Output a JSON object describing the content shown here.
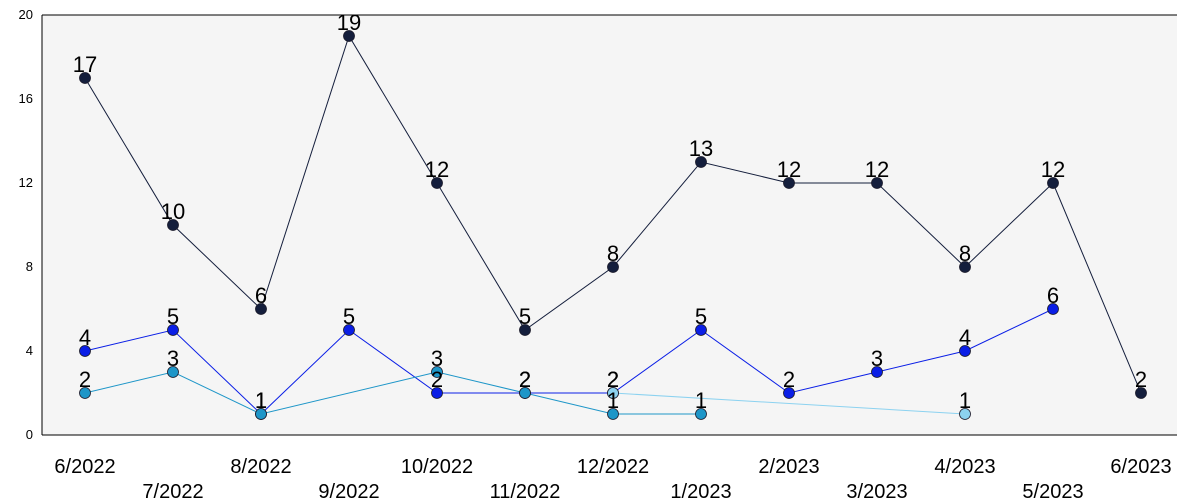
{
  "chart_data": {
    "type": "line",
    "title": "",
    "xlabel": "",
    "ylabel": "",
    "ylim": [
      0,
      20
    ],
    "y_ticks": [
      0,
      4,
      8,
      12,
      16,
      20
    ],
    "grid": false,
    "legend": "none",
    "background": "#f5f5f5",
    "categories": [
      "6/2022",
      "7/2022",
      "8/2022",
      "9/2022",
      "10/2022",
      "11/2022",
      "12/2022",
      "1/2023",
      "2/2023",
      "3/2023",
      "4/2023",
      "5/2023",
      "6/2023"
    ],
    "series": [
      {
        "color": "#141e3c",
        "stroke": "#141e3c",
        "values": [
          17,
          10,
          6,
          19,
          12,
          5,
          8,
          13,
          12,
          12,
          8,
          12,
          2
        ]
      },
      {
        "color": "#0a1ee6",
        "stroke": "#0a1ee6",
        "values": [
          4,
          5,
          1,
          5,
          2,
          2,
          2,
          5,
          2,
          3,
          4,
          6,
          null
        ]
      },
      {
        "color": "#1e96c8",
        "stroke": "#1e96c8",
        "values": [
          2,
          3,
          1,
          null,
          3,
          2,
          1,
          1,
          null,
          null,
          null,
          null,
          null
        ]
      },
      {
        "color": "#8cd2f0",
        "stroke": "#8cd2f0",
        "values": [
          null,
          null,
          null,
          null,
          null,
          null,
          2,
          null,
          null,
          null,
          1,
          null,
          null
        ]
      }
    ]
  }
}
